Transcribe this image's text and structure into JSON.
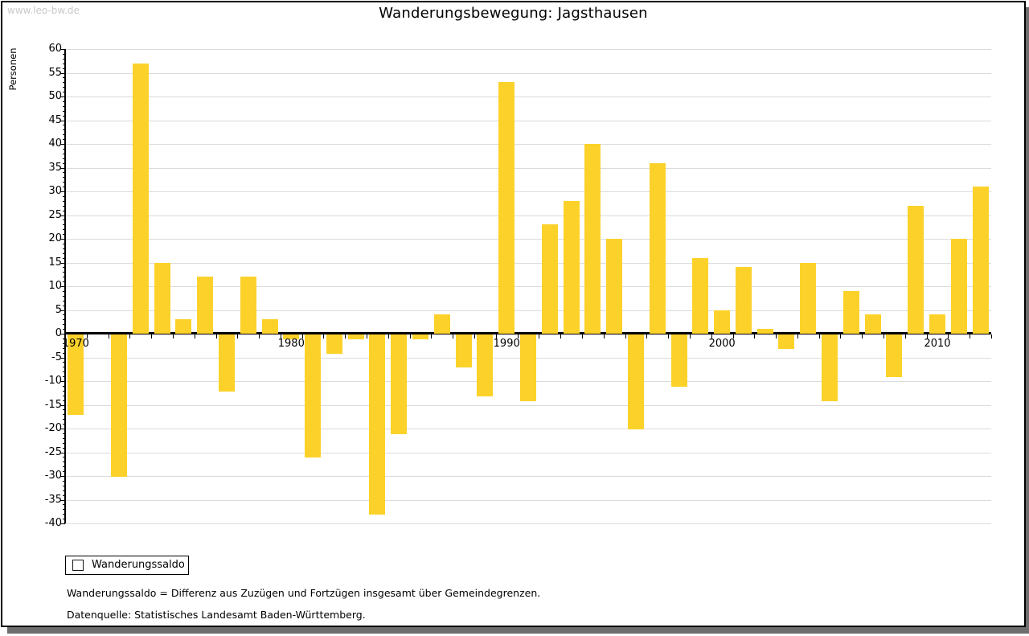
{
  "header": {
    "watermark": "www.leo-bw.de",
    "title": "Wanderungsbewegung: Jagsthausen"
  },
  "chart_data": {
    "type": "bar",
    "title": "Wanderungsbewegung: Jagsthausen",
    "ylabel": "Personen",
    "xlabel": "",
    "ylim": [
      -40,
      60
    ],
    "ytick_major_step": 5,
    "ytick_minor_step": 1,
    "grid": true,
    "bar_color": "#FCD22A",
    "gridline_color": "#dbdbdb",
    "legend": {
      "label": "Wanderungssaldo",
      "position": "bottom-left",
      "swatch_color": "#FCD22A"
    },
    "x_decade_labels": [
      1970,
      1980,
      1990,
      2000,
      2010
    ],
    "years": [
      1970,
      1971,
      1972,
      1973,
      1974,
      1975,
      1976,
      1977,
      1978,
      1979,
      1980,
      1981,
      1982,
      1983,
      1984,
      1985,
      1986,
      1987,
      1988,
      1989,
      1990,
      1991,
      1992,
      1993,
      1994,
      1995,
      1996,
      1997,
      1998,
      1999,
      2000,
      2001,
      2002,
      2003,
      2004,
      2005,
      2006,
      2007,
      2008,
      2009,
      2010,
      2011,
      2012
    ],
    "values": [
      -17,
      0,
      -30,
      57,
      15,
      3,
      12,
      -12,
      12,
      3,
      -1,
      -26,
      -4,
      -1,
      -38,
      -21,
      -1,
      4,
      -7,
      -13,
      53,
      -14,
      23,
      28,
      40,
      20,
      -20,
      36,
      -11,
      16,
      5,
      14,
      1,
      -3,
      15,
      -14,
      9,
      4,
      -9,
      27,
      4,
      20,
      31
    ]
  },
  "footer": {
    "line1": "Wanderungssaldo = Differenz aus Zuzügen und Fortzügen insgesamt über Gemeindegrenzen.",
    "line2": "Datenquelle: Statistisches Landesamt Baden-Württemberg."
  }
}
